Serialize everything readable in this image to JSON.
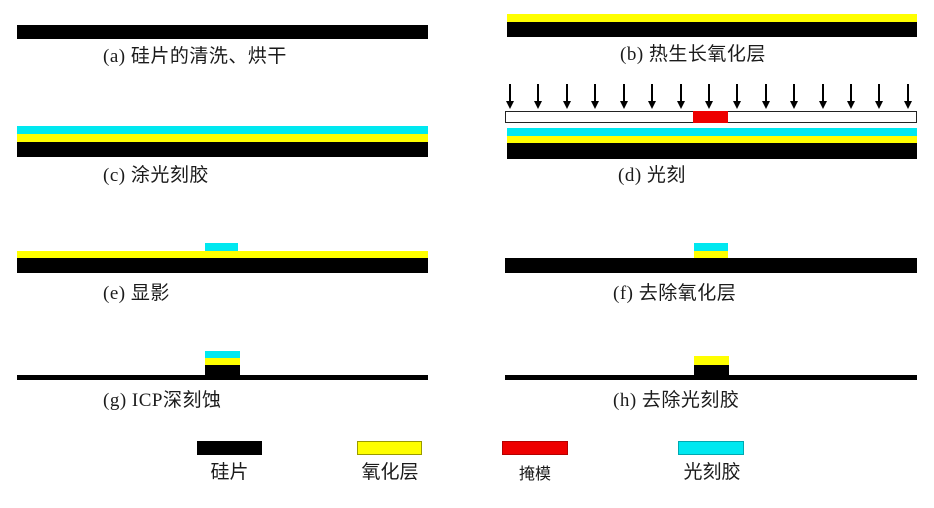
{
  "colors": {
    "background": "#ffffff",
    "silicon": "#000000",
    "oxide": "#ffff00",
    "mask": "#ee0000",
    "photoresist": "#00e8f0",
    "mask_plate_fill": "#ffffff",
    "mask_plate_border": "#222222",
    "label_text": "#1b1b1b"
  },
  "panels": {
    "a": {
      "label": "(a) 硅片的清洗、烘干"
    },
    "b": {
      "label": "(b) 热生长氧化层"
    },
    "c": {
      "label": "(c) 涂光刻胶"
    },
    "d": {
      "label": "(d) 光刻",
      "arrow_count": 15
    },
    "e": {
      "label": "(e) 显影"
    },
    "f": {
      "label": "(f) 去除氧化层"
    },
    "g": {
      "label": "(g) ICP深刻蚀"
    },
    "h": {
      "label": "(h) 去除光刻胶"
    }
  },
  "legend": {
    "items": [
      {
        "name": "silicon",
        "label": "硅片",
        "color": "#000000"
      },
      {
        "name": "oxide",
        "label": "氧化层",
        "color": "#ffff00"
      },
      {
        "name": "mask",
        "label": "掩模",
        "color": "#ee0000"
      },
      {
        "name": "photoresist",
        "label": "光刻胶",
        "color": "#00e8f0"
      }
    ]
  }
}
